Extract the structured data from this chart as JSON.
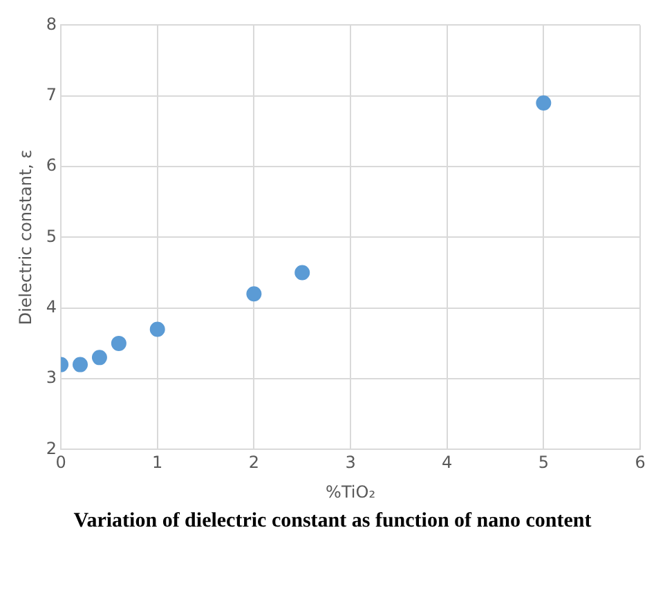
{
  "chart_data": {
    "type": "scatter",
    "xlabel": "%TiO₂",
    "ylabel": "Dielectric constant, ε",
    "x": [
      0,
      0.2,
      0.4,
      0.6,
      1,
      2,
      2.5,
      5
    ],
    "series": [
      {
        "color": "#5b9bd5",
        "values": [
          3.2,
          3.2,
          3.3,
          3.5,
          3.7,
          4.2,
          4.5,
          6.9
        ]
      }
    ],
    "xlim": [
      0,
      6
    ],
    "xticks": [
      0,
      1,
      2,
      3,
      4,
      5,
      6
    ],
    "ylim": [
      2,
      8
    ],
    "yticks": [
      2,
      3,
      4,
      5,
      6,
      7,
      8
    ],
    "grid": true,
    "legend": false,
    "marker": "circle",
    "annotations": [
      "Variation of dielectric constant as function of nano content"
    ]
  }
}
